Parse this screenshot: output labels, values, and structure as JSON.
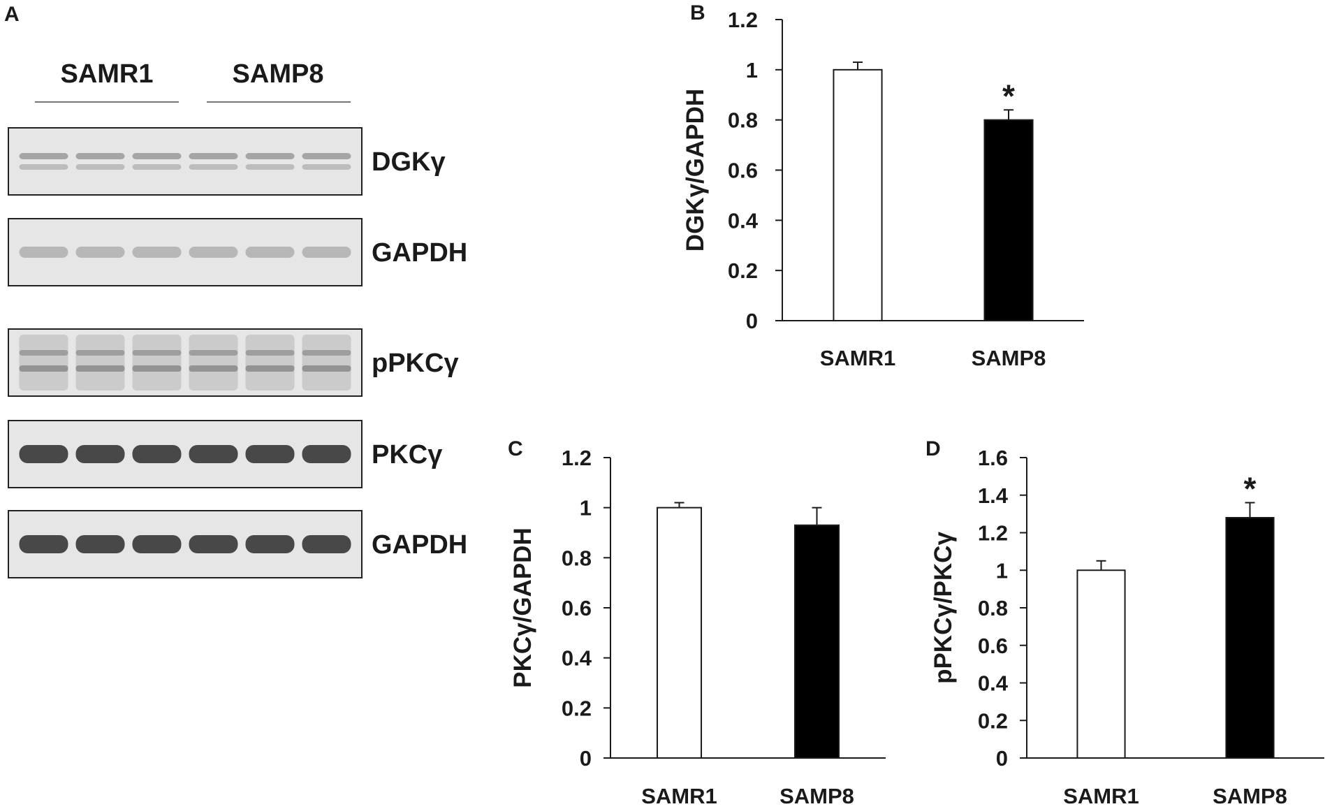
{
  "figure": {
    "panel_letters": [
      "A",
      "B",
      "C",
      "D"
    ]
  },
  "blot_panel": {
    "group_labels": [
      "SAMR1",
      "SAMP8"
    ],
    "lanes_per_group": 3,
    "rows": [
      {
        "label": "DGKγ",
        "style": "double-band"
      },
      {
        "label": "GAPDH",
        "style": "faint-band"
      },
      {
        "label": "pPKCγ",
        "style": "smear"
      },
      {
        "label": "PKCγ",
        "style": "strong-band"
      },
      {
        "label": "GAPDH",
        "style": "strong-band"
      }
    ],
    "colors": {
      "band": "#2b2b2b",
      "membrane": "#e6e6e6"
    }
  },
  "chart_data": [
    {
      "panel": "B",
      "type": "bar",
      "title": "",
      "xlabel": "",
      "ylabel": "DGKγ/GAPDH",
      "categories": [
        "SAMR1",
        "SAMP8"
      ],
      "values": [
        1.0,
        0.8
      ],
      "errors": [
        0.03,
        0.04
      ],
      "significance": [
        "",
        "*"
      ],
      "bar_colors": [
        "#ffffff",
        "#000000"
      ],
      "ylim": [
        0,
        1.2
      ],
      "yticks": [
        0,
        0.2,
        0.4,
        0.6,
        0.8,
        1,
        1.2
      ],
      "ytick_labels": [
        "0",
        "0.2",
        "0.4",
        "0.6",
        "0.8",
        "1",
        "1.2"
      ],
      "grid": false,
      "legend": "none"
    },
    {
      "panel": "C",
      "type": "bar",
      "title": "",
      "xlabel": "",
      "ylabel": "PKCγ/GAPDH",
      "categories": [
        "SAMR1",
        "SAMP8"
      ],
      "values": [
        1.0,
        0.93
      ],
      "errors": [
        0.02,
        0.07
      ],
      "significance": [
        "",
        ""
      ],
      "bar_colors": [
        "#ffffff",
        "#000000"
      ],
      "ylim": [
        0,
        1.2
      ],
      "yticks": [
        0,
        0.2,
        0.4,
        0.6,
        0.8,
        1,
        1.2
      ],
      "ytick_labels": [
        "0",
        "0.2",
        "0.4",
        "0.6",
        "0.8",
        "1",
        "1.2"
      ],
      "grid": false,
      "legend": "none"
    },
    {
      "panel": "D",
      "type": "bar",
      "title": "",
      "xlabel": "",
      "ylabel": "pPKCγ/PKCγ",
      "categories": [
        "SAMR1",
        "SAMP8"
      ],
      "values": [
        1.0,
        1.28
      ],
      "errors": [
        0.05,
        0.08
      ],
      "significance": [
        "",
        "*"
      ],
      "bar_colors": [
        "#ffffff",
        "#000000"
      ],
      "ylim": [
        0,
        1.6
      ],
      "yticks": [
        0,
        0.2,
        0.4,
        0.6,
        0.8,
        1,
        1.2,
        1.4,
        1.6
      ],
      "ytick_labels": [
        "0",
        "0.2",
        "0.4",
        "0.6",
        "0.8",
        "1",
        "1.2",
        "1.4",
        "1.6"
      ],
      "grid": false,
      "legend": "none"
    }
  ]
}
